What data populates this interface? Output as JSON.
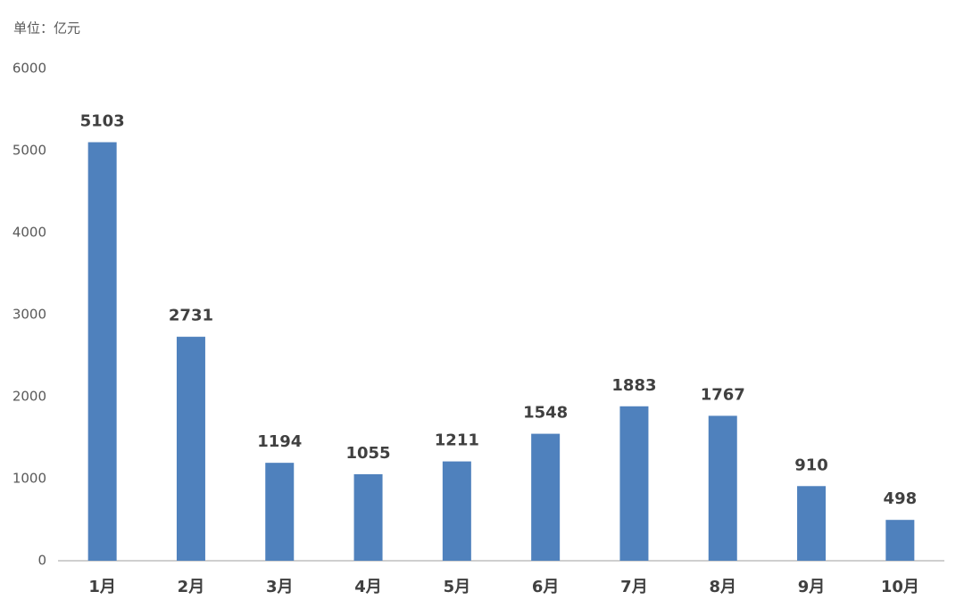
{
  "chart_data": {
    "type": "bar",
    "subtitle": "单位：亿元",
    "categories": [
      "1月",
      "2月",
      "3月",
      "4月",
      "5月",
      "6月",
      "7月",
      "8月",
      "9月",
      "10月"
    ],
    "values": [
      5103,
      2731,
      1194,
      1055,
      1211,
      1548,
      1883,
      1767,
      910,
      498
    ],
    "color": "#4f81bd",
    "ylim": [
      0,
      6000
    ],
    "yticks": [
      0,
      1000,
      2000,
      3000,
      4000,
      5000,
      6000
    ],
    "grid": false
  }
}
